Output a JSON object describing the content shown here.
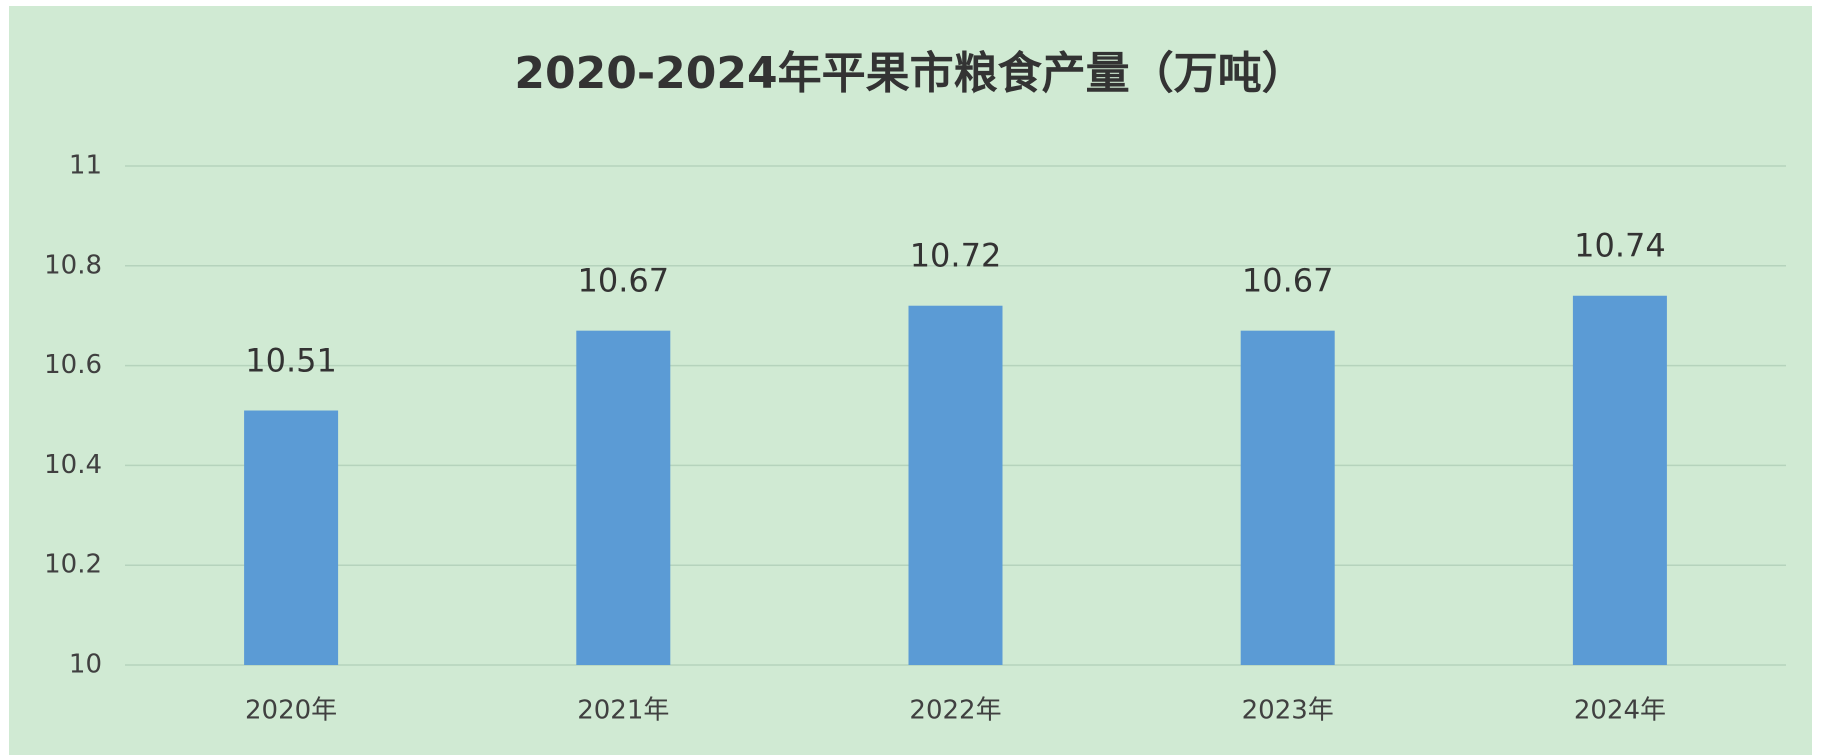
{
  "chart_data": {
    "type": "bar",
    "title": "2020-2024年平果市粮食产量（万吨）",
    "categories": [
      "2020年",
      "2021年",
      "2022年",
      "2023年",
      "2024年"
    ],
    "values": [
      10.51,
      10.67,
      10.72,
      10.67,
      10.74
    ],
    "color": "#5b9bd5",
    "ylim": [
      10,
      11
    ],
    "yticks": [
      10,
      10.2,
      10.4,
      10.6,
      10.8,
      11
    ],
    "grid": true
  }
}
